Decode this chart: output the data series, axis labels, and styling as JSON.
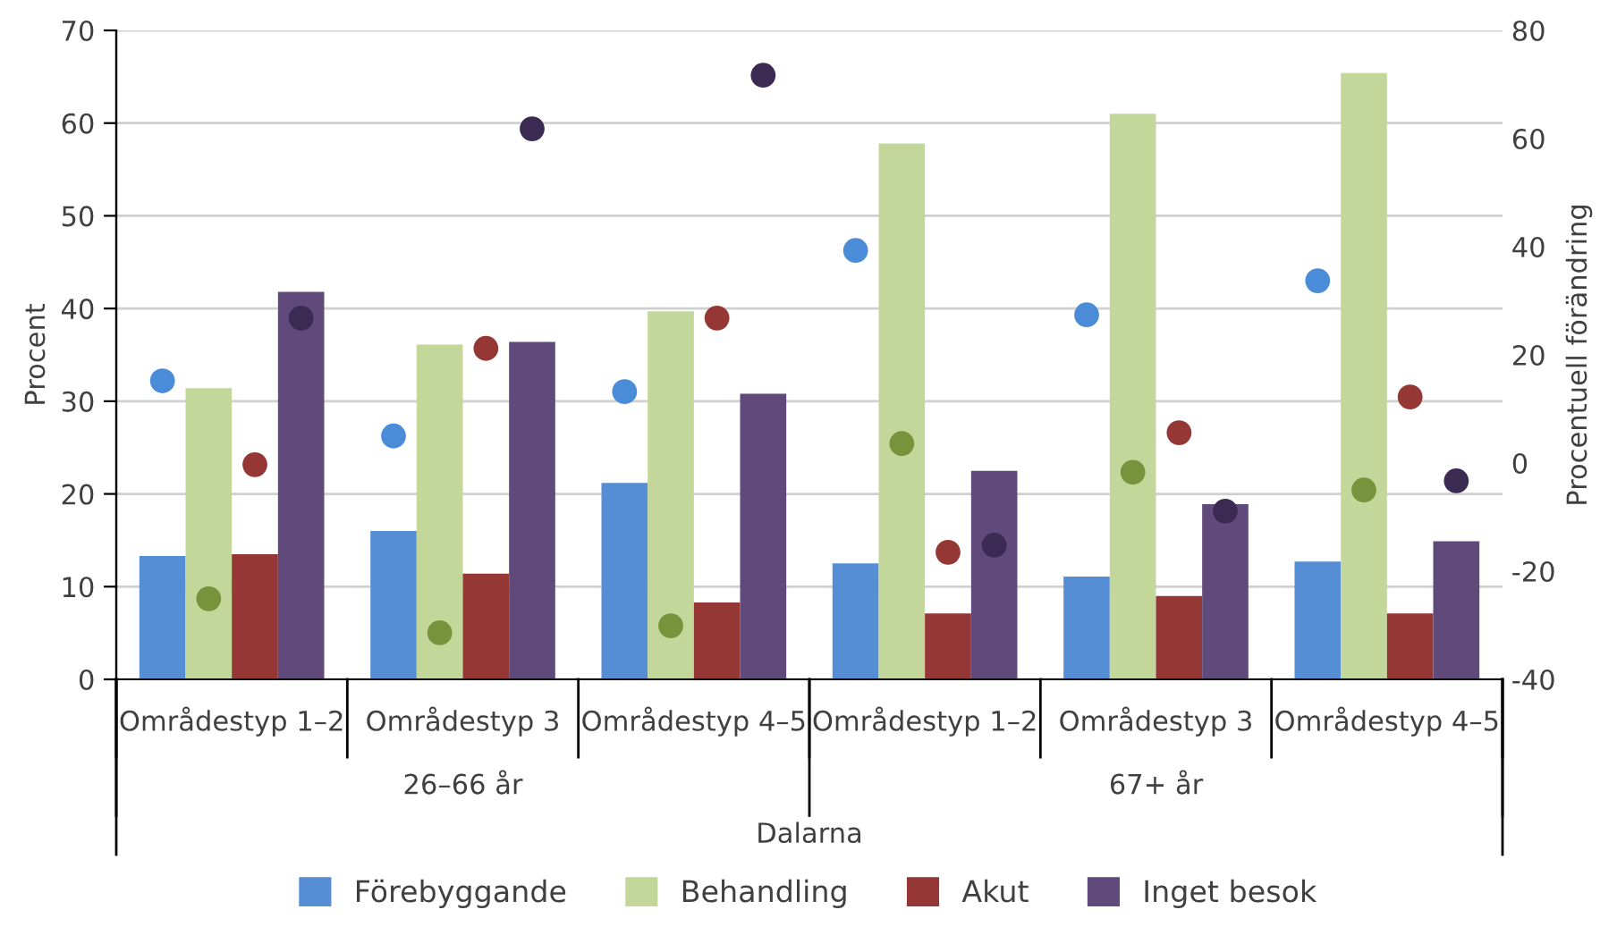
{
  "chart_data": {
    "type": "bar",
    "categories": [
      "Områdestyp 1–2",
      "Områdestyp 3",
      "Områdestyp 4–5",
      "Områdestyp 1–2",
      "Områdestyp 3",
      "Områdestyp 4–5"
    ],
    "xlabel": "Dalarna",
    "annotations": [
      "26–66 år",
      "67+ år"
    ],
    "ylabel": "Procent",
    "y2label": "Procentuell förändring",
    "ylim": [
      0,
      70
    ],
    "yticks": [
      0,
      10,
      20,
      30,
      40,
      50,
      60,
      70
    ],
    "y2lim": [
      -40,
      80
    ],
    "y2ticks": [
      -40,
      -20,
      0,
      20,
      40,
      60,
      80
    ],
    "grid": "y",
    "legend": "bottom",
    "series": [
      {
        "name": "Förebyggande",
        "color": "#558ed5",
        "values": [
          13.3,
          16.0,
          21.2,
          12.5,
          11.1,
          12.7
        ]
      },
      {
        "name": "Behandling",
        "color": "#c4d79b",
        "values": [
          31.4,
          36.1,
          39.7,
          57.8,
          61.0,
          65.4
        ]
      },
      {
        "name": "Akut",
        "color": "#953735",
        "values": [
          13.5,
          11.4,
          8.3,
          7.1,
          9.0,
          7.1
        ]
      },
      {
        "name": "Inget besok",
        "color": "#604a7b",
        "values": [
          41.8,
          36.4,
          30.8,
          22.5,
          18.9,
          14.9
        ]
      },
      {
        "type": "scatter",
        "axis": "y2",
        "marker": "circle",
        "color": "#4a8cd8",
        "values": [
          15.2,
          5.0,
          13.2,
          39.3,
          27.4,
          33.7
        ]
      },
      {
        "type": "scatter",
        "axis": "y2",
        "marker": "circle",
        "color": "#77933c",
        "values": [
          -25.1,
          -31.4,
          -30.1,
          3.6,
          -1.7,
          -5.0
        ]
      },
      {
        "type": "scatter",
        "axis": "y2",
        "marker": "circle",
        "color": "#953735",
        "values": [
          -0.3,
          21.2,
          26.8,
          -16.5,
          5.6,
          12.2
        ]
      },
      {
        "type": "scatter",
        "axis": "y2",
        "marker": "circle",
        "color": "#3b2b52",
        "values": [
          26.8,
          61.8,
          71.7,
          -15.2,
          -8.9,
          -3.3
        ]
      }
    ]
  }
}
